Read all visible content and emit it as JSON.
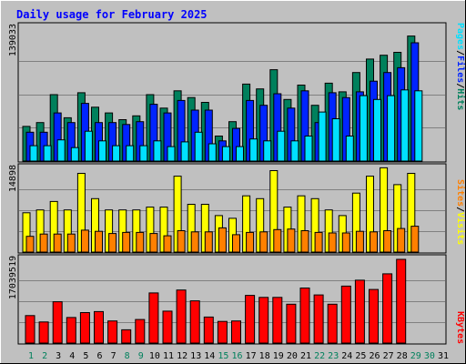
{
  "chart_data": {
    "type": "bar",
    "title": "Daily usage for February 2025",
    "categories": [
      "1",
      "2",
      "3",
      "4",
      "5",
      "6",
      "7",
      "8",
      "9",
      "10",
      "11",
      "12",
      "13",
      "14",
      "15",
      "16",
      "17",
      "18",
      "19",
      "20",
      "21",
      "22",
      "23",
      "24",
      "25",
      "26",
      "27",
      "28",
      "29",
      "30",
      "31"
    ],
    "weekend_categories": [
      "1",
      "2",
      "8",
      "9",
      "15",
      "16",
      "22",
      "23",
      "29",
      "30"
    ],
    "panels": [
      {
        "id": "hits",
        "max_label": "139033",
        "ylim": [
          0,
          139033
        ],
        "legend": [
          "Pages",
          "Files",
          "Hits"
        ],
        "series": [
          {
            "name": "Hits",
            "color": "#00805c",
            "values": [
              36000,
              40000,
              69000,
              45000,
              71000,
              56000,
              50000,
              43000,
              47000,
              69000,
              55000,
              73000,
              66000,
              61000,
              26000,
              41000,
              80000,
              75000,
              95000,
              64000,
              79000,
              58000,
              81000,
              72000,
              92000,
              106000,
              110000,
              113000,
              130000,
              0,
              0
            ]
          },
          {
            "name": "Files",
            "color": "#0024ff",
            "values": [
              30000,
              30000,
              50000,
              40000,
              60000,
              40000,
              40000,
              38000,
              41000,
              59000,
              50000,
              63000,
              53000,
              53000,
              21000,
              34000,
              63000,
              58000,
              70000,
              55000,
              73000,
              40000,
              71000,
              66000,
              72000,
              83000,
              92000,
              97000,
              123000,
              0,
              0
            ]
          },
          {
            "name": "Pages",
            "color": "#00e0ff",
            "values": [
              16000,
              16000,
              22000,
              14000,
              31000,
              21000,
              16000,
              16000,
              16000,
              21000,
              15000,
              20000,
              30000,
              18000,
              15000,
              15000,
              23000,
              21000,
              31000,
              21000,
              26000,
              51000,
              44000,
              26000,
              68000,
              64000,
              68000,
              74000,
              73000,
              0,
              0
            ]
          }
        ]
      },
      {
        "id": "visits",
        "max_label": "14898",
        "ylim": [
          0,
          14898
        ],
        "legend": [
          "Sites",
          "Visits"
        ],
        "series": [
          {
            "name": "Visits",
            "color": "#ffff00",
            "values": [
              7000,
              7500,
              9000,
              7500,
              14000,
              9500,
              7500,
              7500,
              7500,
              8000,
              8000,
              13500,
              8500,
              8500,
              6500,
              6000,
              10000,
              9500,
              14500,
              8000,
              10000,
              9500,
              7500,
              6500,
              10500,
              13500,
              15000,
              12000,
              14000,
              0,
              0
            ]
          },
          {
            "name": "Sites",
            "color": "#ff8000",
            "values": [
              2800,
              3200,
              3200,
              3200,
              3900,
              3700,
              3300,
              3500,
              3500,
              3300,
              2900,
              3800,
              3600,
              3600,
              4300,
              3100,
              3500,
              3600,
              4000,
              4100,
              3800,
              3500,
              3400,
              3400,
              3700,
              3600,
              3800,
              4200,
              4600,
              0,
              0
            ]
          }
        ]
      },
      {
        "id": "kbytes",
        "max_label": "17039519",
        "ylim": [
          0,
          17039519
        ],
        "legend": [
          "KBytes"
        ],
        "series": [
          {
            "name": "KBytes",
            "color": "#ff0000",
            "values": [
              5600000,
              4300000,
              8400000,
              5200000,
              6200000,
              6400000,
              4500000,
              2700000,
              4800000,
              10200000,
              6500000,
              10800000,
              8600000,
              5300000,
              4400000,
              4500000,
              9700000,
              9300000,
              9300000,
              7900000,
              11200000,
              9800000,
              7900000,
              11600000,
              12800000,
              10900000,
              14100000,
              17039519,
              0,
              0,
              0
            ]
          }
        ]
      }
    ],
    "colors": {
      "background": "#c0c0c0",
      "title": "#0000ff",
      "weekday_label": "#000000",
      "weekend_label": "#00805c",
      "max_label": "#000000",
      "grid": "#808080"
    }
  }
}
